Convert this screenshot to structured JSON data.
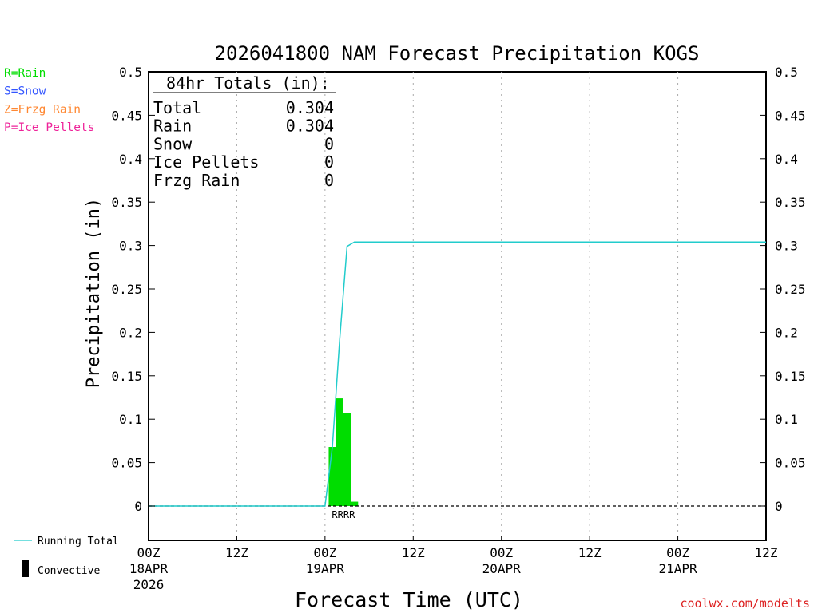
{
  "chart_data": {
    "type": "bar",
    "title": "2026041800 NAM Forecast Precipitation KOGS",
    "xlabel": "Forecast Time (UTC)",
    "ylabel": "Precipitation (in)",
    "ylim": [
      -0.04,
      0.5
    ],
    "xlim_hours": [
      0,
      84
    ],
    "yticks": [
      0,
      0.05,
      0.1,
      0.15,
      0.2,
      0.25,
      0.3,
      0.35,
      0.4,
      0.45,
      0.5
    ],
    "ytick_labels": [
      "0",
      "0.05",
      "0.1",
      "0.15",
      "0.2",
      "0.25",
      "0.3",
      "0.35",
      "0.4",
      "0.45",
      "0.5"
    ],
    "xticks": [
      {
        "hour": 0,
        "label": "00Z",
        "sub": [
          "18APR",
          "2026"
        ]
      },
      {
        "hour": 12,
        "label": "12Z",
        "sub": []
      },
      {
        "hour": 24,
        "label": "00Z",
        "sub": [
          "19APR"
        ]
      },
      {
        "hour": 36,
        "label": "12Z",
        "sub": []
      },
      {
        "hour": 48,
        "label": "00Z",
        "sub": [
          "20APR"
        ]
      },
      {
        "hour": 60,
        "label": "12Z",
        "sub": []
      },
      {
        "hour": 72,
        "label": "00Z",
        "sub": [
          "21APR"
        ]
      },
      {
        "hour": 84,
        "label": "12Z",
        "sub": []
      }
    ],
    "grid": "vertical dotted at 12-hour marks",
    "bars": [
      {
        "start": 24.5,
        "end": 25.5,
        "value": 0.068,
        "ptype": "R"
      },
      {
        "start": 25.5,
        "end": 26.5,
        "value": 0.124,
        "ptype": "R"
      },
      {
        "start": 26.5,
        "end": 27.5,
        "value": 0.107,
        "ptype": "R"
      },
      {
        "start": 27.5,
        "end": 28.5,
        "value": 0.005,
        "ptype": "R"
      }
    ],
    "ptype_marker_text": "RRRR",
    "running_total": {
      "name": "Running Total",
      "points": [
        [
          0,
          0
        ],
        [
          24,
          0
        ],
        [
          25,
          0.068
        ],
        [
          26,
          0.192
        ],
        [
          27,
          0.299
        ],
        [
          28,
          0.304
        ],
        [
          84,
          0.304
        ]
      ]
    },
    "colors": {
      "rain": "#00dd00",
      "snow": "#3355ff",
      "frzg_rain": "#ff8833",
      "ice_pellets": "#ee2299",
      "running_total": "#22cccc",
      "convective": "#000000",
      "credit": "#dd2222"
    }
  },
  "totals": {
    "heading": "84hr Totals (in):",
    "rows": [
      {
        "label": "Total",
        "value": "0.304"
      },
      {
        "label": "Rain",
        "value": "0.304"
      },
      {
        "label": "Snow",
        "value": "0"
      },
      {
        "label": "Ice Pellets",
        "value": "0"
      },
      {
        "label": "Frzg Rain",
        "value": "0"
      }
    ]
  },
  "ptype_legend": [
    {
      "text": "R=Rain",
      "color": "#00dd00"
    },
    {
      "text": "S=Snow",
      "color": "#3355ff"
    },
    {
      "text": "Z=Frzg Rain",
      "color": "#ff8833"
    },
    {
      "text": "P=Ice Pellets",
      "color": "#ee2299"
    }
  ],
  "series_legend": {
    "running_total": "Running Total",
    "convective": "Convective"
  },
  "credit": "coolwx.com/modelts"
}
